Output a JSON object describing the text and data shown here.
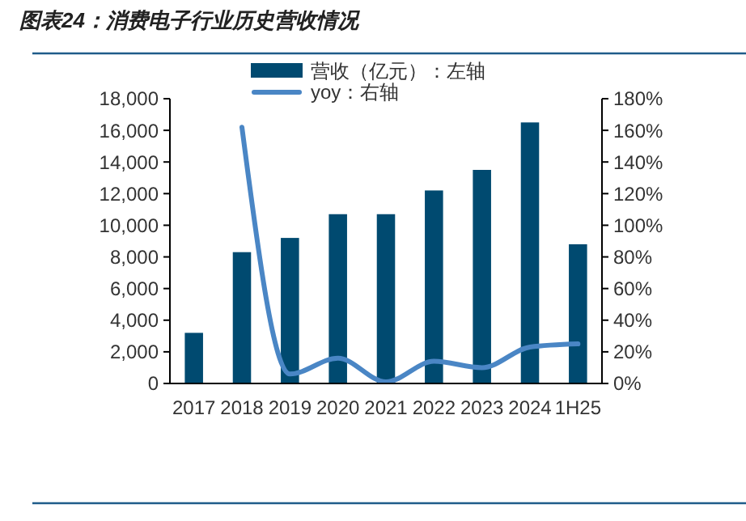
{
  "chart_data": {
    "type": "bar",
    "title": "图表24：消费电子行业历史营收情况",
    "categories": [
      "2017",
      "2018",
      "2019",
      "2020",
      "2021",
      "2022",
      "2023",
      "2024",
      "1H25"
    ],
    "series": [
      {
        "name": "营收（亿元）：左轴",
        "color": "#004a70",
        "values": [
          3200,
          8300,
          9200,
          10700,
          10700,
          12200,
          13500,
          16500,
          8800
        ]
      },
      {
        "name": "yoy：右轴",
        "type": "line",
        "axis": "y2",
        "color": "#4a86c5",
        "values": [
          null,
          162,
          6,
          16,
          1,
          14,
          10,
          23,
          25
        ]
      }
    ],
    "ylim": [
      0,
      18000
    ],
    "yticks": [
      {
        "value": 0,
        "label": "0"
      },
      {
        "value": 2000,
        "label": "2,000"
      },
      {
        "value": 4000,
        "label": "4,000"
      },
      {
        "value": 6000,
        "label": "6,000"
      },
      {
        "value": 8000,
        "label": "8,000"
      },
      {
        "value": 10000,
        "label": "10,000"
      },
      {
        "value": 12000,
        "label": "12,000"
      },
      {
        "value": 14000,
        "label": "14,000"
      },
      {
        "value": 16000,
        "label": "16,000"
      },
      {
        "value": 18000,
        "label": "18,000"
      }
    ],
    "y2lim": [
      0,
      180
    ],
    "y2ticks": [
      {
        "value": 0,
        "label": "0%"
      },
      {
        "value": 20,
        "label": "20%"
      },
      {
        "value": 40,
        "label": "40%"
      },
      {
        "value": 60,
        "label": "60%"
      },
      {
        "value": 80,
        "label": "80%"
      },
      {
        "value": 100,
        "label": "100%"
      },
      {
        "value": 120,
        "label": "120%"
      },
      {
        "value": 140,
        "label": "140%"
      },
      {
        "value": 160,
        "label": "160%"
      },
      {
        "value": 180,
        "label": "180%"
      }
    ],
    "legend": "top",
    "grid": false
  }
}
